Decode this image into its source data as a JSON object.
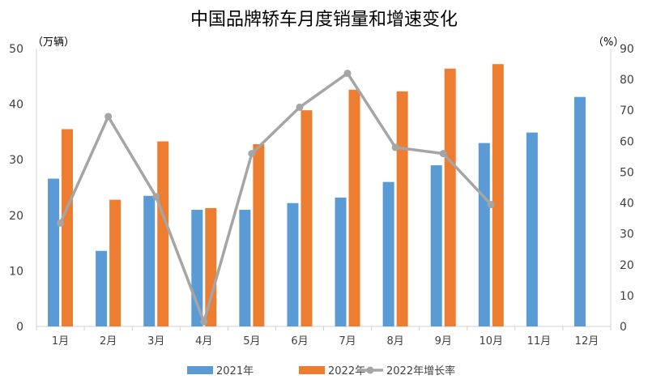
{
  "chart_data": {
    "type": "bar",
    "title": "中国品牌轿车月度销量和增速变化",
    "y_left_unit": "（万辆）",
    "y_right_unit": "（%）",
    "categories": [
      "1月",
      "2月",
      "3月",
      "4月",
      "5月",
      "6月",
      "7月",
      "8月",
      "9月",
      "10月",
      "11月",
      "12月"
    ],
    "ylim_left": [
      0,
      50
    ],
    "ylim_right": [
      0,
      90
    ],
    "y_left_ticks": [
      0,
      10,
      20,
      30,
      40,
      50
    ],
    "y_right_ticks": [
      0,
      10,
      20,
      30,
      40,
      50,
      60,
      70,
      80,
      90
    ],
    "series": [
      {
        "name": "2021年",
        "type": "bar",
        "axis": "left",
        "color": "#5b9bd5",
        "values": [
          26.6,
          13.6,
          23.5,
          21.0,
          21.0,
          22.2,
          23.2,
          26.0,
          29.0,
          33.0,
          34.9,
          41.3
        ]
      },
      {
        "name": "2022年",
        "type": "bar",
        "axis": "left",
        "color": "#ed7d31",
        "values": [
          35.5,
          22.8,
          33.3,
          21.3,
          32.8,
          38.9,
          42.6,
          42.3,
          46.4,
          47.2,
          null,
          null
        ]
      },
      {
        "name": "2022年增长率",
        "type": "line",
        "axis": "right",
        "color": "#a5a5a5",
        "values": [
          33.5,
          68,
          42,
          1.5,
          56,
          71,
          82,
          58,
          56,
          39.5,
          null,
          null
        ]
      }
    ],
    "legend_position": "bottom",
    "grid": false
  }
}
